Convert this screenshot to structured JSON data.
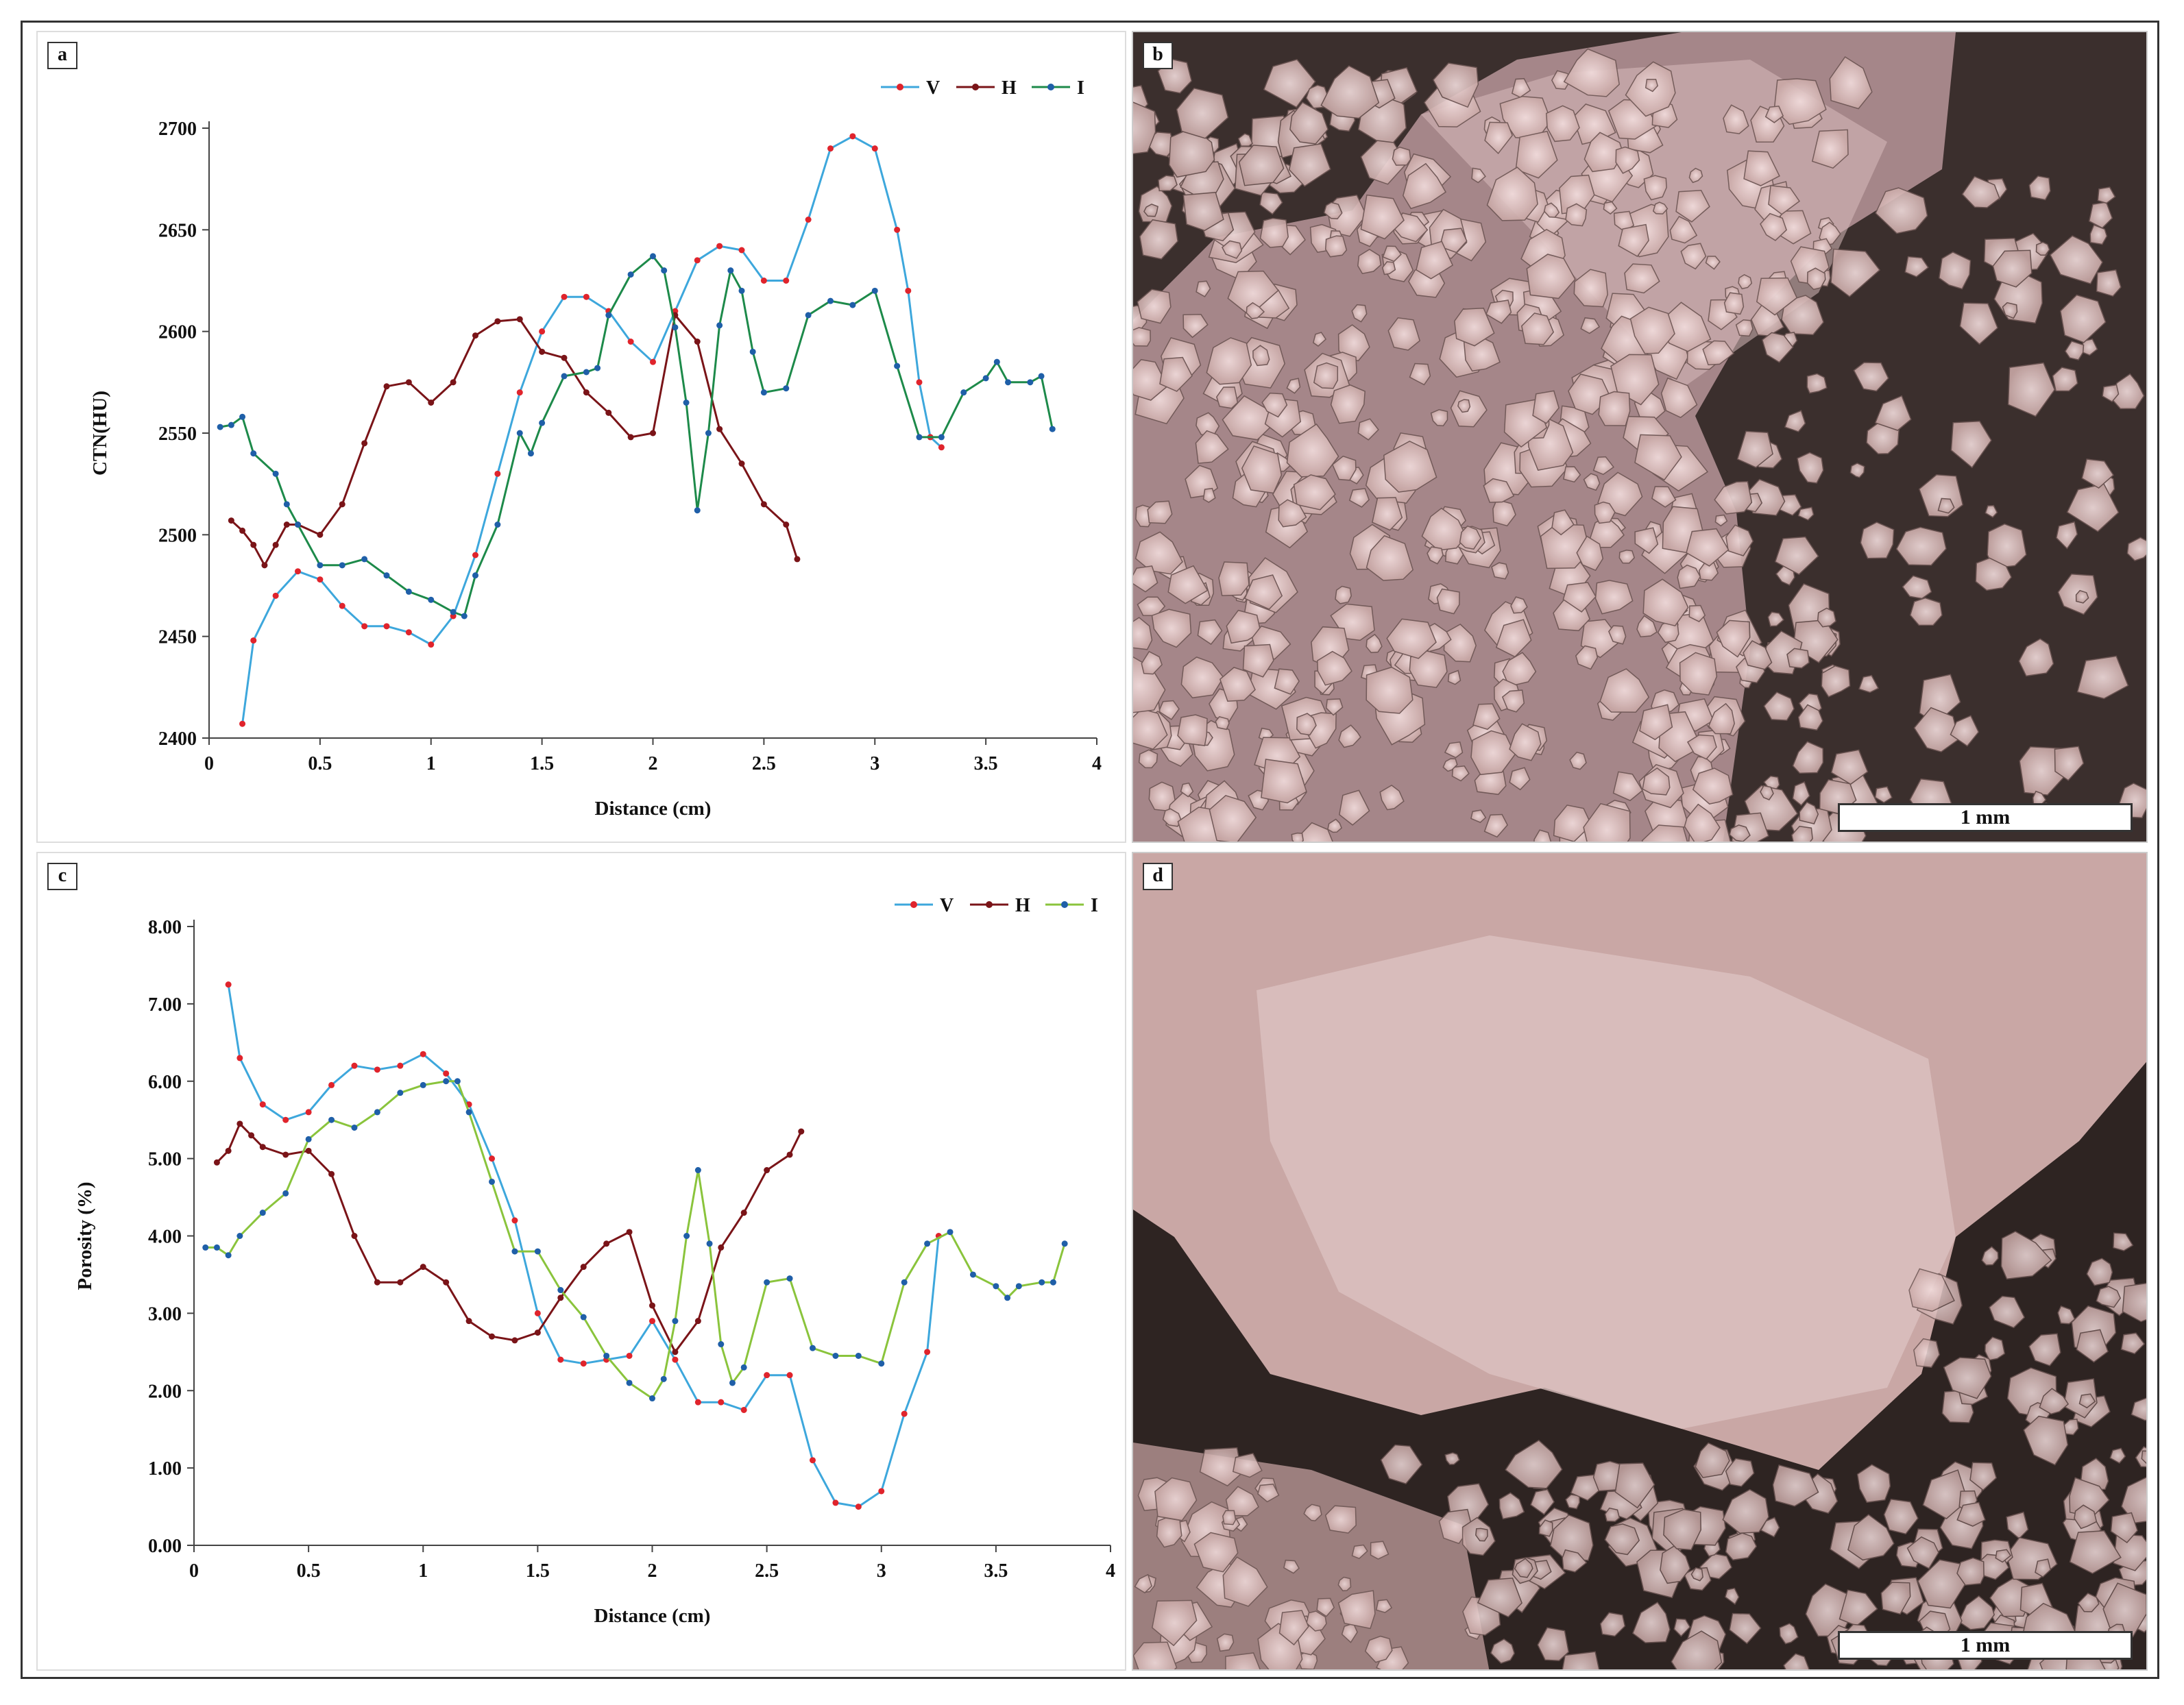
{
  "panels": {
    "a": {
      "label": "a"
    },
    "b": {
      "label": "b",
      "scale_label": "1 mm"
    },
    "c": {
      "label": "c"
    },
    "d": {
      "label": "d",
      "scale_label": "1 mm"
    }
  },
  "colors": {
    "V_line": "#3da7dc",
    "V_marker": "#e0242c",
    "H": "#7a1418",
    "I_line_a": "#1d8a4a",
    "I_line_c": "#8ac43c",
    "I_marker": "#1f5fa8"
  },
  "chart_data": [
    {
      "type": "line",
      "panel": "a",
      "xlabel": "Distance (cm)",
      "ylabel": "CTN(HU)",
      "xlim": [
        0,
        4
      ],
      "ylim": [
        2400,
        2700
      ],
      "xticks": [
        0,
        0.5,
        1,
        1.5,
        2,
        2.5,
        3,
        3.5,
        4
      ],
      "xtick_labels": [
        "0",
        "0.5",
        "1",
        "1.5",
        "2",
        "2.5",
        "3",
        "3.5",
        "4"
      ],
      "yticks": [
        2400,
        2450,
        2500,
        2550,
        2600,
        2650,
        2700
      ],
      "ytick_labels": [
        "2400",
        "2450",
        "2500",
        "2550",
        "2600",
        "2650",
        "2700"
      ],
      "legend_position": "top-right",
      "series": [
        {
          "name": "V",
          "x": [
            0.15,
            0.2,
            0.3,
            0.4,
            0.5,
            0.6,
            0.7,
            0.8,
            0.9,
            1.0,
            1.1,
            1.2,
            1.3,
            1.4,
            1.5,
            1.6,
            1.7,
            1.8,
            1.9,
            2.0,
            2.1,
            2.2,
            2.3,
            2.4,
            2.5,
            2.6,
            2.7,
            2.8,
            2.9,
            3.0,
            3.1,
            3.15,
            3.2,
            3.25,
            3.3
          ],
          "y": [
            2407,
            2448,
            2470,
            2482,
            2478,
            2465,
            2455,
            2455,
            2452,
            2446,
            2460,
            2490,
            2530,
            2570,
            2600,
            2617,
            2617,
            2610,
            2595,
            2585,
            2610,
            2635,
            2642,
            2640,
            2625,
            2625,
            2655,
            2690,
            2696,
            2690,
            2650,
            2620,
            2575,
            2548,
            2543
          ]
        },
        {
          "name": "H",
          "x": [
            0.1,
            0.15,
            0.2,
            0.25,
            0.3,
            0.35,
            0.4,
            0.5,
            0.6,
            0.7,
            0.8,
            0.9,
            1.0,
            1.1,
            1.2,
            1.3,
            1.4,
            1.5,
            1.6,
            1.7,
            1.8,
            1.9,
            2.0,
            2.1,
            2.2,
            2.3,
            2.4,
            2.5,
            2.6,
            2.65
          ],
          "y": [
            2507,
            2502,
            2495,
            2485,
            2495,
            2505,
            2505,
            2500,
            2515,
            2545,
            2573,
            2575,
            2565,
            2575,
            2598,
            2605,
            2606,
            2590,
            2587,
            2570,
            2560,
            2548,
            2550,
            2608,
            2595,
            2552,
            2535,
            2515,
            2505,
            2488
          ]
        },
        {
          "name": "I",
          "x": [
            0.05,
            0.1,
            0.15,
            0.2,
            0.3,
            0.35,
            0.4,
            0.5,
            0.6,
            0.7,
            0.8,
            0.9,
            1.0,
            1.1,
            1.15,
            1.2,
            1.3,
            1.4,
            1.45,
            1.5,
            1.6,
            1.7,
            1.75,
            1.8,
            1.9,
            2.0,
            2.05,
            2.1,
            2.15,
            2.2,
            2.25,
            2.3,
            2.35,
            2.4,
            2.45,
            2.5,
            2.6,
            2.7,
            2.8,
            2.9,
            3.0,
            3.1,
            3.2,
            3.3,
            3.4,
            3.5,
            3.55,
            3.6,
            3.7,
            3.75,
            3.8
          ],
          "y": [
            2553,
            2554,
            2558,
            2540,
            2530,
            2515,
            2505,
            2485,
            2485,
            2488,
            2480,
            2472,
            2468,
            2462,
            2460,
            2480,
            2505,
            2550,
            2540,
            2555,
            2578,
            2580,
            2582,
            2608,
            2628,
            2637,
            2630,
            2602,
            2565,
            2512,
            2550,
            2603,
            2630,
            2620,
            2590,
            2570,
            2572,
            2608,
            2615,
            2613,
            2620,
            2583,
            2548,
            2548,
            2570,
            2577,
            2585,
            2575,
            2575,
            2578,
            2552
          ]
        }
      ]
    },
    {
      "type": "line",
      "panel": "c",
      "xlabel": "Distance (cm)",
      "ylabel": "Porosity (%)",
      "xlim": [
        0,
        4
      ],
      "ylim": [
        0,
        8
      ],
      "xticks": [
        0,
        0.5,
        1,
        1.5,
        2,
        2.5,
        3,
        3.5,
        4
      ],
      "xtick_labels": [
        "0",
        "0.5",
        "1",
        "1.5",
        "2",
        "2.5",
        "3",
        "3.5",
        "4"
      ],
      "yticks": [
        0,
        1,
        2,
        3,
        4,
        5,
        6,
        7,
        8
      ],
      "ytick_labels": [
        "0.00",
        "1.00",
        "2.00",
        "3.00",
        "4.00",
        "5.00",
        "6.00",
        "7.00",
        "8.00"
      ],
      "legend_position": "top-right",
      "series": [
        {
          "name": "V",
          "x": [
            0.15,
            0.2,
            0.3,
            0.4,
            0.5,
            0.6,
            0.7,
            0.8,
            0.9,
            1.0,
            1.1,
            1.2,
            1.3,
            1.4,
            1.5,
            1.6,
            1.7,
            1.8,
            1.9,
            2.0,
            2.1,
            2.2,
            2.3,
            2.4,
            2.5,
            2.6,
            2.7,
            2.8,
            2.9,
            3.0,
            3.1,
            3.2,
            3.25
          ],
          "y": [
            7.25,
            6.3,
            5.7,
            5.5,
            5.6,
            5.95,
            6.2,
            6.15,
            6.2,
            6.35,
            6.1,
            5.7,
            5.0,
            4.2,
            3.0,
            2.4,
            2.35,
            2.4,
            2.45,
            2.9,
            2.4,
            1.85,
            1.85,
            1.75,
            2.2,
            2.2,
            1.1,
            0.55,
            0.5,
            0.7,
            1.7,
            2.5,
            4.0
          ]
        },
        {
          "name": "H",
          "x": [
            0.1,
            0.15,
            0.2,
            0.25,
            0.3,
            0.4,
            0.5,
            0.6,
            0.7,
            0.8,
            0.9,
            1.0,
            1.1,
            1.2,
            1.3,
            1.4,
            1.5,
            1.6,
            1.7,
            1.8,
            1.9,
            2.0,
            2.1,
            2.2,
            2.3,
            2.4,
            2.5,
            2.6,
            2.65
          ],
          "y": [
            4.95,
            5.1,
            5.45,
            5.3,
            5.15,
            5.05,
            5.1,
            4.8,
            4.0,
            3.4,
            3.4,
            3.6,
            3.4,
            2.9,
            2.7,
            2.65,
            2.75,
            3.2,
            3.6,
            3.9,
            4.05,
            3.1,
            2.5,
            2.9,
            3.85,
            4.3,
            4.85,
            5.05,
            5.35
          ]
        },
        {
          "name": "I",
          "x": [
            0.05,
            0.1,
            0.15,
            0.2,
            0.3,
            0.4,
            0.5,
            0.6,
            0.7,
            0.8,
            0.9,
            1.0,
            1.1,
            1.15,
            1.2,
            1.3,
            1.4,
            1.5,
            1.6,
            1.7,
            1.8,
            1.9,
            2.0,
            2.05,
            2.1,
            2.15,
            2.2,
            2.25,
            2.3,
            2.35,
            2.4,
            2.5,
            2.6,
            2.7,
            2.8,
            2.9,
            3.0,
            3.1,
            3.2,
            3.3,
            3.4,
            3.5,
            3.55,
            3.6,
            3.7,
            3.75,
            3.8
          ],
          "y": [
            3.85,
            3.85,
            3.75,
            4.0,
            4.3,
            4.55,
            5.25,
            5.5,
            5.4,
            5.6,
            5.85,
            5.95,
            6.0,
            6.0,
            5.6,
            4.7,
            3.8,
            3.8,
            3.3,
            2.95,
            2.45,
            2.1,
            1.9,
            2.15,
            2.9,
            4.0,
            4.85,
            3.9,
            2.6,
            2.1,
            2.3,
            3.4,
            3.45,
            2.55,
            2.45,
            2.45,
            2.35,
            3.4,
            3.9,
            4.05,
            3.5,
            3.35,
            3.2,
            3.35,
            3.4,
            3.4,
            3.9
          ]
        }
      ]
    }
  ]
}
